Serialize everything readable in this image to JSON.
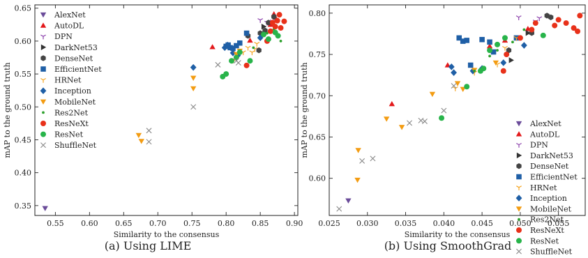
{
  "chart_data": [
    {
      "type": "scatter",
      "caption": "(a) Using LIME",
      "xlabel": "Similarity to the consensus",
      "ylabel": "mAP to the ground truth",
      "xlim": [
        0.52,
        0.905
      ],
      "ylim": [
        0.335,
        0.655
      ],
      "xticks": [
        "0.55",
        "0.60",
        "0.65",
        "0.70",
        "0.75",
        "0.80",
        "0.85",
        "0.90"
      ],
      "yticks": [
        "0.35",
        "0.40",
        "0.45",
        "0.50",
        "0.55",
        "0.60",
        "0.65"
      ],
      "legend": "top-left",
      "series": [
        {
          "name": "AlexNet",
          "marker": "tri-down",
          "color": "#6b4c9a",
          "points": [
            [
              0.535,
              0.346
            ]
          ]
        },
        {
          "name": "AutoDL",
          "marker": "tri-up",
          "color": "#e31a1c",
          "points": [
            [
              0.78,
              0.591
            ],
            [
              0.835,
              0.601
            ],
            [
              0.865,
              0.625
            ],
            [
              0.87,
              0.641
            ],
            [
              0.872,
              0.636
            ]
          ]
        },
        {
          "name": "DPN",
          "marker": "y-shape",
          "color": "#8e44ad",
          "points": [
            [
              0.85,
              0.632
            ],
            [
              0.86,
              0.628
            ],
            [
              0.868,
              0.63
            ]
          ]
        },
        {
          "name": "DarkNet53",
          "marker": "tri-right",
          "color": "#333333",
          "points": [
            [
              0.855,
              0.622
            ]
          ]
        },
        {
          "name": "DenseNet",
          "marker": "hexagon",
          "color": "#444444",
          "points": [
            [
              0.832,
              0.608
            ],
            [
              0.848,
              0.586
            ],
            [
              0.85,
              0.612
            ],
            [
              0.857,
              0.616
            ],
            [
              0.862,
              0.628
            ],
            [
              0.87,
              0.637
            ]
          ]
        },
        {
          "name": "EfficientNet",
          "marker": "square",
          "color": "#1f5fa6",
          "points": [
            [
              0.8,
              0.592
            ],
            [
              0.803,
              0.594
            ],
            [
              0.806,
              0.59
            ],
            [
              0.81,
              0.589
            ],
            [
              0.815,
              0.593
            ],
            [
              0.82,
              0.597
            ],
            [
              0.83,
              0.612
            ]
          ]
        },
        {
          "name": "HRNet",
          "marker": "y-shape",
          "color": "#f5a623",
          "points": [
            [
              0.825,
              0.583
            ],
            [
              0.832,
              0.59
            ],
            [
              0.838,
              0.583
            ],
            [
              0.842,
              0.588
            ],
            [
              0.845,
              0.596
            ]
          ]
        },
        {
          "name": "Inception",
          "marker": "diamond",
          "color": "#1f5fa6",
          "points": [
            [
              0.752,
              0.56
            ],
            [
              0.798,
              0.59
            ],
            [
              0.802,
              0.594
            ],
            [
              0.81,
              0.582
            ],
            [
              0.817,
              0.578
            ],
            [
              0.85,
              0.605
            ]
          ]
        },
        {
          "name": "MobileNet",
          "marker": "tri-down",
          "color": "#f39c12",
          "points": [
            [
              0.672,
              0.457
            ],
            [
              0.676,
              0.448
            ],
            [
              0.752,
              0.544
            ],
            [
              0.752,
              0.528
            ],
            [
              0.81,
              0.57
            ],
            [
              0.815,
              0.58
            ],
            [
              0.82,
              0.585
            ]
          ]
        },
        {
          "name": "Res2Net",
          "marker": "small-dot",
          "color": "#2ca02c",
          "points": [
            [
              0.84,
              0.59
            ],
            [
              0.86,
              0.612
            ],
            [
              0.87,
              0.618
            ],
            [
              0.875,
              0.61
            ],
            [
              0.88,
              0.6
            ]
          ]
        },
        {
          "name": "ResNeXt",
          "marker": "circle",
          "color": "#e8311a",
          "points": [
            [
              0.83,
              0.563
            ],
            [
              0.86,
              0.6
            ],
            [
              0.865,
              0.615
            ],
            [
              0.868,
              0.628
            ],
            [
              0.872,
              0.622
            ],
            [
              0.875,
              0.631
            ],
            [
              0.88,
              0.62
            ],
            [
              0.885,
              0.63
            ],
            [
              0.878,
              0.64
            ]
          ]
        },
        {
          "name": "ResNet",
          "marker": "circle",
          "color": "#28b44a",
          "points": [
            [
              0.795,
              0.546
            ],
            [
              0.8,
              0.55
            ],
            [
              0.808,
              0.57
            ],
            [
              0.815,
              0.575
            ],
            [
              0.82,
              0.583
            ],
            [
              0.835,
              0.57
            ],
            [
              0.855,
              0.61
            ],
            [
              0.862,
              0.603
            ],
            [
              0.872,
              0.613
            ],
            [
              0.876,
              0.608
            ]
          ]
        },
        {
          "name": "ShuffleNet",
          "marker": "x",
          "color": "#888888",
          "points": [
            [
              0.687,
              0.464
            ],
            [
              0.687,
              0.447
            ],
            [
              0.752,
              0.5
            ],
            [
              0.788,
              0.564
            ],
            [
              0.815,
              0.57
            ],
            [
              0.818,
              0.567
            ]
          ]
        }
      ]
    },
    {
      "type": "scatter",
      "caption": "(b) Using SmoothGrad",
      "xlabel": "Similarity to the consensus",
      "ylabel": "mAP to the ground truth",
      "xlim": [
        0.025,
        0.0585
      ],
      "ylim": [
        0.555,
        0.81
      ],
      "xticks": [
        "0.025",
        "0.030",
        "0.035",
        "0.040",
        "0.045",
        "0.050",
        "0.055"
      ],
      "yticks": [
        "0.60",
        "0.65",
        "0.70",
        "0.75",
        "0.80"
      ],
      "legend": "bottom-right",
      "series": [
        {
          "name": "AlexNet",
          "marker": "tri-down",
          "color": "#6b4c9a",
          "points": [
            [
              0.0275,
              0.573
            ]
          ]
        },
        {
          "name": "AutoDL",
          "marker": "tri-up",
          "color": "#e31a1c",
          "points": [
            [
              0.0332,
              0.69
            ],
            [
              0.0405,
              0.737
            ],
            [
              0.046,
              0.76
            ],
            [
              0.048,
              0.767
            ],
            [
              0.051,
              0.781
            ]
          ]
        },
        {
          "name": "DPN",
          "marker": "y-shape",
          "color": "#8e44ad",
          "points": [
            [
              0.0498,
              0.795
            ],
            [
              0.052,
              0.79
            ],
            [
              0.0525,
              0.794
            ]
          ]
        },
        {
          "name": "DarkNet53",
          "marker": "tri-right",
          "color": "#333333",
          "points": [
            [
              0.0488,
              0.743
            ],
            [
              0.051,
              0.776
            ]
          ]
        },
        {
          "name": "DenseNet",
          "marker": "hexagon",
          "color": "#444444",
          "points": [
            [
              0.0485,
              0.755
            ],
            [
              0.0515,
              0.776
            ],
            [
              0.0535,
              0.797
            ],
            [
              0.054,
              0.795
            ]
          ]
        },
        {
          "name": "EfficientNet",
          "marker": "square",
          "color": "#1f5fa6",
          "points": [
            [
              0.042,
              0.77
            ],
            [
              0.0425,
              0.766
            ],
            [
              0.043,
              0.767
            ],
            [
              0.0435,
              0.737
            ],
            [
              0.045,
              0.768
            ],
            [
              0.046,
              0.765
            ],
            [
              0.0465,
              0.753
            ],
            [
              0.0495,
              0.77
            ]
          ]
        },
        {
          "name": "HRNet",
          "marker": "y-shape",
          "color": "#f5a623",
          "points": [
            [
              0.0415,
              0.709
            ],
            [
              0.044,
              0.728
            ],
            [
              0.047,
              0.738
            ],
            [
              0.048,
              0.758
            ],
            [
              0.0495,
              0.77
            ]
          ]
        },
        {
          "name": "Inception",
          "marker": "diamond",
          "color": "#1f5fa6",
          "points": [
            [
              0.041,
              0.735
            ],
            [
              0.0413,
              0.728
            ],
            [
              0.0438,
              0.73
            ],
            [
              0.045,
              0.733
            ],
            [
              0.0478,
              0.74
            ],
            [
              0.0505,
              0.761
            ]
          ]
        },
        {
          "name": "MobileNet",
          "marker": "tri-down",
          "color": "#f39c12",
          "points": [
            [
              0.0287,
              0.598
            ],
            [
              0.0288,
              0.634
            ],
            [
              0.0325,
              0.672
            ],
            [
              0.0345,
              0.662
            ],
            [
              0.0385,
              0.702
            ],
            [
              0.0418,
              0.715
            ],
            [
              0.0425,
              0.708
            ],
            [
              0.044,
              0.731
            ],
            [
              0.0468,
              0.74
            ]
          ]
        },
        {
          "name": "Res2Net",
          "marker": "small-dot",
          "color": "#2ca02c",
          "points": [
            [
              0.044,
              0.73
            ],
            [
              0.046,
              0.748
            ],
            [
              0.047,
              0.755
            ],
            [
              0.049,
              0.765
            ],
            [
              0.0505,
              0.78
            ]
          ]
        },
        {
          "name": "ResNeXt",
          "marker": "circle",
          "color": "#e8311a",
          "points": [
            [
              0.0478,
              0.73
            ],
            [
              0.0482,
              0.75
            ],
            [
              0.05,
              0.77
            ],
            [
              0.0515,
              0.78
            ],
            [
              0.052,
              0.788
            ],
            [
              0.0545,
              0.785
            ],
            [
              0.055,
              0.792
            ],
            [
              0.056,
              0.788
            ],
            [
              0.057,
              0.782
            ],
            [
              0.0575,
              0.778
            ],
            [
              0.0578,
              0.797
            ]
          ]
        },
        {
          "name": "ResNet",
          "marker": "circle",
          "color": "#28b44a",
          "points": [
            [
              0.0397,
              0.673
            ],
            [
              0.043,
              0.711
            ],
            [
              0.0448,
              0.73
            ],
            [
              0.0452,
              0.733
            ],
            [
              0.046,
              0.755
            ],
            [
              0.047,
              0.762
            ],
            [
              0.048,
              0.77
            ],
            [
              0.053,
              0.773
            ]
          ]
        },
        {
          "name": "ShuffleNet",
          "marker": "x",
          "color": "#888888",
          "points": [
            [
              0.0263,
              0.563
            ],
            [
              0.0293,
              0.621
            ],
            [
              0.0307,
              0.624
            ],
            [
              0.0355,
              0.667
            ],
            [
              0.037,
              0.67
            ],
            [
              0.0375,
              0.669
            ],
            [
              0.04,
              0.682
            ],
            [
              0.0413,
              0.712
            ]
          ]
        }
      ]
    }
  ]
}
